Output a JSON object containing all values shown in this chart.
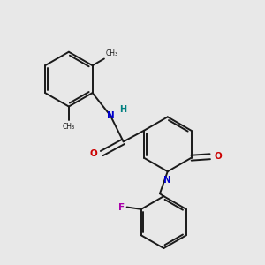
{
  "background_color": "#e8e8e8",
  "bond_color": "#1a1a1a",
  "N_color": "#0000cc",
  "O_color": "#cc0000",
  "F_color": "#aa00aa",
  "H_color": "#008080",
  "figsize": [
    3.0,
    3.0
  ],
  "dpi": 100,
  "lw": 1.4,
  "xlim": [
    0,
    10
  ],
  "ylim": [
    0,
    10
  ]
}
